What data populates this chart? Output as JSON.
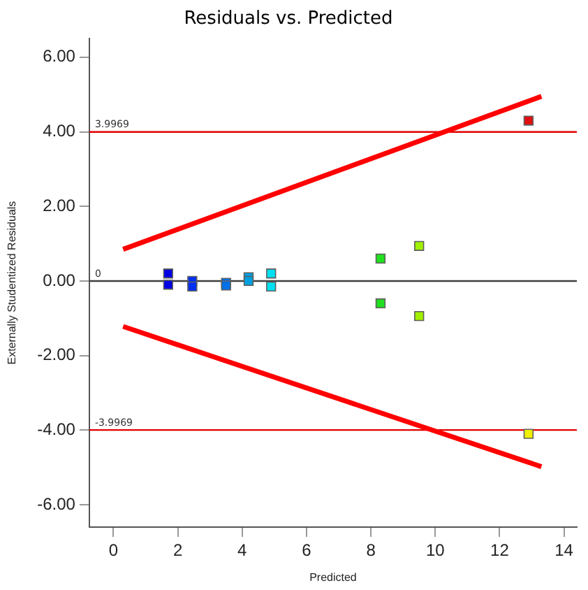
{
  "chart_data": {
    "type": "scatter",
    "title": "Residuals vs. Predicted",
    "xlabel": "Predicted",
    "ylabel": "Externally Studentized Residuals",
    "xlim": [
      -0.75,
      14.4
    ],
    "xticks": [
      0,
      2,
      4,
      6,
      8,
      10,
      12,
      14
    ],
    "ylim": [
      -6.6,
      6.5
    ],
    "yticks": [
      {
        "value": -6,
        "label": "-6.00"
      },
      {
        "value": -4,
        "label": "-4.00"
      },
      {
        "value": -2,
        "label": "-2.00"
      },
      {
        "value": 0,
        "label": "0.00"
      },
      {
        "value": 2,
        "label": "2.00"
      },
      {
        "value": 4,
        "label": "4.00"
      },
      {
        "value": 6,
        "label": "6.00"
      }
    ],
    "grid": false,
    "legend": false,
    "series": [
      {
        "marker": "square",
        "x": [
          1.7,
          1.7,
          2.45,
          2.45,
          3.5,
          3.5,
          4.2,
          4.2,
          4.9,
          4.9,
          8.3,
          8.3,
          9.5,
          9.5,
          12.9,
          12.9
        ],
        "values": [
          0.2,
          -0.1,
          0.0,
          -0.15,
          -0.05,
          -0.12,
          0.1,
          0.0,
          0.2,
          -0.15,
          0.6,
          -0.6,
          0.94,
          -0.94,
          4.3,
          -4.1
        ],
        "colors": [
          "#0000e0",
          "#0000e0",
          "#0030f0",
          "#0030f0",
          "#0070e8",
          "#0070e8",
          "#00a0e0",
          "#00a0e0",
          "#00e0f0",
          "#00e0f0",
          "#20e020",
          "#20e020",
          "#a0f000",
          "#a0f000",
          "#e01010",
          "#f0f000"
        ]
      },
      {
        "type": "line",
        "marker": "none",
        "color": "#ff0000",
        "x": [
          0.3,
          13.3
        ],
        "values": [
          0.85,
          4.95
        ]
      },
      {
        "type": "line",
        "marker": "none",
        "color": "#ff0000",
        "x": [
          0.3,
          13.3
        ],
        "values": [
          -1.22,
          -4.98
        ]
      }
    ],
    "ref_lines": [
      {
        "axis": "y",
        "value": 3.9969,
        "label": "3.9969",
        "color": "#e00000"
      },
      {
        "axis": "y",
        "value": 0,
        "label": "0",
        "color": "#404040"
      },
      {
        "axis": "y",
        "value": -3.9969,
        "label": "-3.9969",
        "color": "#e00000"
      }
    ]
  }
}
